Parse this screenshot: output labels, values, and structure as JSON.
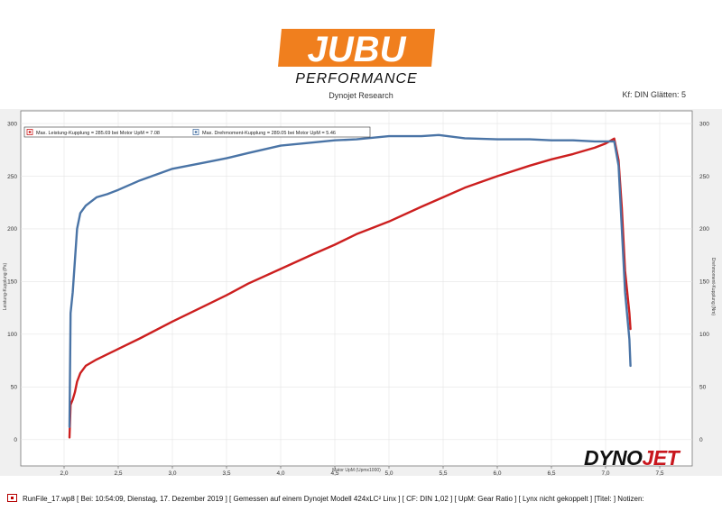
{
  "header": {
    "logo_text": "JUBU",
    "logo_subtext": "PERFORMANCE",
    "subtitle": "Dynojet Research",
    "kf": "Kf: DIN Glätten: 5"
  },
  "brand": {
    "dynojet_part1": "DYNO",
    "dynojet_part2": "JET"
  },
  "colors": {
    "logo_orange": "#f07f1e",
    "power": "#cc1f1f",
    "torque": "#4a74a6",
    "plot_bg": "#ffffff",
    "frame_bg": "#f0f0f0"
  },
  "chart_data": {
    "type": "line",
    "xlabel": "Motor UpM (Upmx1000)",
    "ylabel_left": "Leistung-Kupplung (Ps)",
    "ylabel_right": "Drehmoment-Kupplung (Nm)",
    "xlim": [
      1.6,
      7.8
    ],
    "ylim": [
      -25,
      312
    ],
    "xticks": [
      "2,0",
      "2,5",
      "3,0",
      "3,5",
      "4,0",
      "4,5",
      "5,0",
      "5,5",
      "6,0",
      "6,5",
      "7,0",
      "7,5"
    ],
    "xtick_values": [
      2.0,
      2.5,
      3.0,
      3.5,
      4.0,
      4.5,
      5.0,
      5.5,
      6.0,
      6.5,
      7.0,
      7.5
    ],
    "yticks": [
      "0",
      "50",
      "100",
      "150",
      "200",
      "250",
      "300"
    ],
    "ytick_values": [
      0,
      50,
      100,
      150,
      200,
      250,
      300
    ],
    "legend": [
      {
        "label": "Max. Leistung-Kupplung = 285.69 bei Motor UpM = 7.08",
        "color": "#cc1f1f"
      },
      {
        "label": "Max. Drehmoment-Kupplung = 289.05 bei Motor UpM = 5.46",
        "color": "#4a74a6"
      }
    ],
    "series": [
      {
        "name": "Leistung-Kupplung",
        "color": "#cc1f1f",
        "x": [
          2.05,
          2.06,
          2.08,
          2.1,
          2.12,
          2.15,
          2.2,
          2.3,
          2.4,
          2.5,
          2.7,
          3.0,
          3.3,
          3.5,
          3.7,
          4.0,
          4.3,
          4.5,
          4.7,
          5.0,
          5.3,
          5.5,
          5.7,
          6.0,
          6.3,
          6.5,
          6.7,
          6.9,
          7.0,
          7.08,
          7.12,
          7.15,
          7.18,
          7.22,
          7.23
        ],
        "y": [
          2,
          33,
          38,
          45,
          55,
          63,
          70,
          76,
          81,
          86,
          96,
          112,
          127,
          137,
          148,
          162,
          176,
          185,
          195,
          207,
          221,
          230,
          239,
          250,
          260,
          266,
          271,
          277,
          281,
          285.69,
          265,
          220,
          160,
          120,
          105
        ]
      },
      {
        "name": "Drehmoment-Kupplung",
        "color": "#4a74a6",
        "x": [
          2.05,
          2.06,
          2.08,
          2.1,
          2.12,
          2.15,
          2.2,
          2.3,
          2.4,
          2.5,
          2.7,
          3.0,
          3.3,
          3.5,
          3.7,
          4.0,
          4.3,
          4.5,
          4.7,
          5.0,
          5.3,
          5.46,
          5.7,
          6.0,
          6.3,
          6.5,
          6.7,
          6.9,
          7.0,
          7.08,
          7.12,
          7.15,
          7.18,
          7.22,
          7.23
        ],
        "y": [
          12,
          120,
          140,
          170,
          200,
          215,
          222,
          230,
          233,
          237,
          246,
          257,
          263,
          267,
          272,
          279,
          282,
          284,
          285,
          288,
          288,
          289.05,
          286,
          285,
          285,
          284,
          284,
          283,
          283,
          283,
          260,
          200,
          140,
          95,
          70
        ]
      }
    ]
  },
  "footer": {
    "text": "RunFile_17.wp8 [ Bei: 10:54:09, Dienstag, 17. Dezember 2019 ] [ Gemessen auf einem Dynojet Modell 424xLC² Linx ] [ CF: DIN 1,02 ] [ UpM: Gear Ratio ] [ Lynx nicht gekoppelt ] [Titel: ]   Notizen:"
  }
}
